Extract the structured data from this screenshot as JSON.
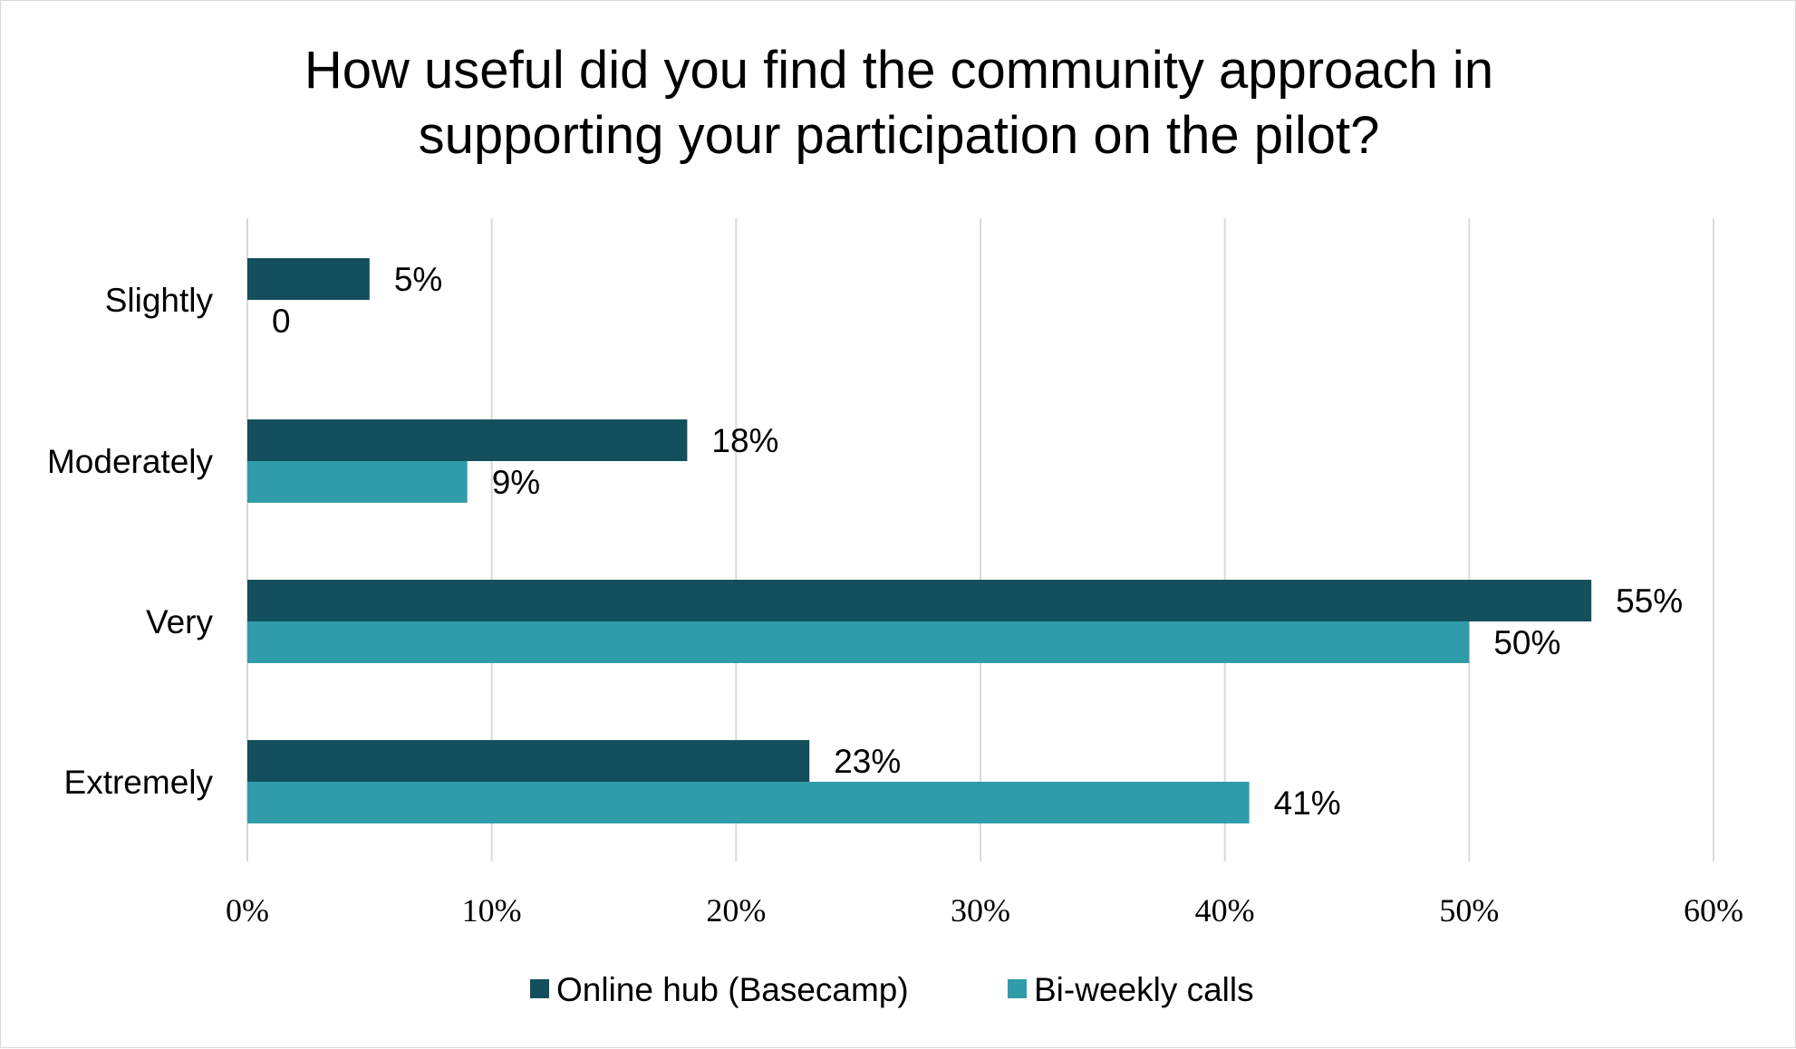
{
  "chart_data": {
    "type": "bar",
    "orientation": "horizontal",
    "title_lines": [
      "How useful did you find the community approach in",
      "supporting your participation on the pilot?"
    ],
    "categories": [
      "Slightly",
      "Moderately",
      "Very",
      "Extremely"
    ],
    "series": [
      {
        "name": "Online hub (Basecamp)",
        "color": "#134f5c",
        "values": [
          5,
          18,
          55,
          23
        ],
        "labels": [
          "5%",
          "18%",
          "55%",
          "23%"
        ]
      },
      {
        "name": "Bi-weekly calls",
        "color": "#319ca9",
        "values": [
          0,
          9,
          50,
          41
        ],
        "labels": [
          "0",
          "9%",
          "50%",
          "41%"
        ]
      }
    ],
    "xlim": [
      0,
      60
    ],
    "xticks": [
      0,
      10,
      20,
      30,
      40,
      50,
      60
    ],
    "xtick_labels": [
      "0%",
      "10%",
      "20%",
      "30%",
      "40%",
      "50%",
      "60%"
    ],
    "grid": true,
    "legend_position": "bottom"
  }
}
